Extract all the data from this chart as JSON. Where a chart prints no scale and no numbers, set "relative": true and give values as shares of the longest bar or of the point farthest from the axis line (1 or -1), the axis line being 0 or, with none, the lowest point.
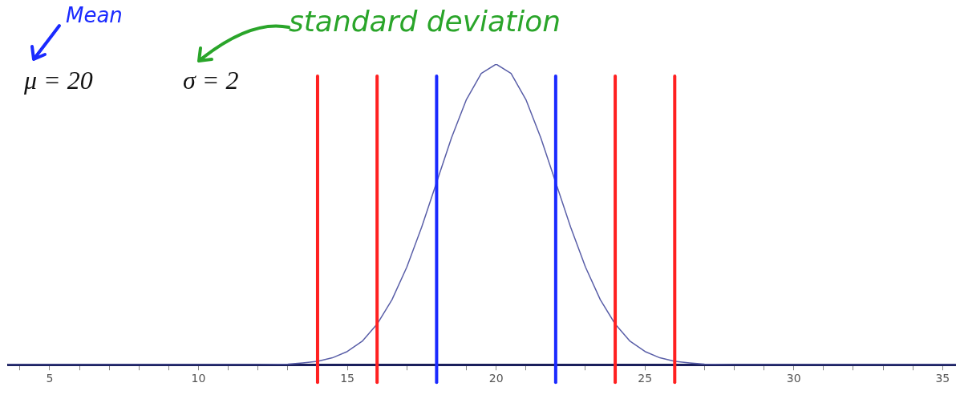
{
  "chart_data": {
    "type": "line",
    "relative": true,
    "x": [
      3.6,
      12,
      13,
      13.5,
      14,
      14.5,
      15,
      15.5,
      16,
      16.5,
      17,
      17.5,
      18,
      18.5,
      19,
      19.5,
      20,
      20.5,
      21,
      21.5,
      22,
      22.5,
      23,
      23.5,
      24,
      24.5,
      25,
      25.5,
      26,
      26.5,
      27,
      28,
      35.45
    ],
    "series": [
      {
        "color": "#5a5fa8",
        "values": [
          0,
          0,
          0.002,
          0.006,
          0.011,
          0.023,
          0.044,
          0.078,
          0.135,
          0.216,
          0.325,
          0.458,
          0.607,
          0.755,
          0.882,
          0.969,
          1,
          0.969,
          0.882,
          0.755,
          0.607,
          0.458,
          0.325,
          0.216,
          0.135,
          0.078,
          0.044,
          0.023,
          0.011,
          0.006,
          0.002,
          0,
          0
        ]
      }
    ],
    "xlim": [
      3.6,
      35.45
    ],
    "xticks": [
      {
        "value": 4,
        "label": null
      },
      5,
      {
        "value": 6,
        "label": null
      },
      {
        "value": 7,
        "label": null
      },
      {
        "value": 8,
        "label": null
      },
      {
        "value": 9,
        "label": null
      },
      10,
      {
        "value": 11,
        "label": null
      },
      {
        "value": 12,
        "label": null
      },
      {
        "value": 13,
        "label": null
      },
      {
        "value": 14,
        "label": null
      },
      15,
      {
        "value": 16,
        "label": null
      },
      {
        "value": 17,
        "label": null
      },
      {
        "value": 18,
        "label": null
      },
      {
        "value": 19,
        "label": null
      },
      20,
      {
        "value": 21,
        "label": null
      },
      {
        "value": 22,
        "label": null
      },
      {
        "value": 23,
        "label": null
      },
      {
        "value": 24,
        "label": null
      },
      25,
      {
        "value": 26,
        "label": null
      },
      {
        "value": 27,
        "label": null
      },
      {
        "value": 28,
        "label": null
      },
      {
        "value": 29,
        "label": null
      },
      30,
      {
        "value": 31,
        "label": null
      },
      {
        "value": 32,
        "label": null
      },
      {
        "value": 33,
        "label": null
      },
      {
        "value": 34,
        "label": null
      },
      35
    ],
    "marker": "none",
    "line_style": "solid",
    "grid": false,
    "legend": false,
    "ref_lines": [
      {
        "axis": "x",
        "value": 14,
        "color": "#ff2020"
      },
      {
        "axis": "x",
        "value": 16,
        "color": "#ff2020"
      },
      {
        "axis": "x",
        "value": 18,
        "color": "#1a2aff"
      },
      {
        "axis": "x",
        "value": 22,
        "color": "#1a2aff"
      },
      {
        "axis": "x",
        "value": 24,
        "color": "#ff2020"
      },
      {
        "axis": "x",
        "value": 26,
        "color": "#ff2020"
      }
    ],
    "annotations": [
      "Mean",
      "μ = 20",
      "σ = 2",
      "standard deviation"
    ]
  }
}
